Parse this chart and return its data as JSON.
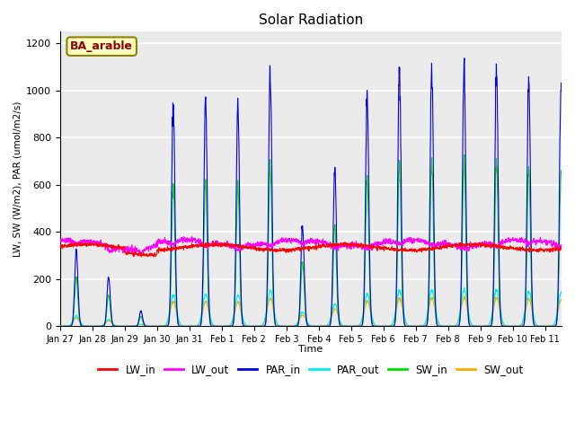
{
  "title": "Solar Radiation",
  "xlabel": "Time",
  "ylabel": "LW, SW (W/m2), PAR (umol/m2/s)",
  "site_label": "BA_arable",
  "ylim": [
    0,
    1250
  ],
  "series": {
    "LW_in": {
      "color": "#ff0000",
      "lw": 0.8,
      "zorder": 6
    },
    "LW_out": {
      "color": "#ff00ff",
      "lw": 0.8,
      "zorder": 6
    },
    "PAR_in": {
      "color": "#0000ee",
      "lw": 0.8,
      "zorder": 5
    },
    "PAR_out": {
      "color": "#00eeee",
      "lw": 0.8,
      "zorder": 4
    },
    "SW_in": {
      "color": "#00dd00",
      "lw": 0.8,
      "zorder": 4
    },
    "SW_out": {
      "color": "#ffaa00",
      "lw": 0.8,
      "zorder": 4
    }
  },
  "tick_labels": [
    "Jan 27",
    "Jan 28",
    "Jan 29",
    "Jan 30",
    "Jan 31",
    "Feb 1",
    "Feb 2",
    "Feb 3",
    "Feb 4",
    "Feb 5",
    "Feb 6",
    "Feb 7",
    "Feb 8",
    "Feb 9",
    "Feb 10",
    "Feb 11"
  ],
  "background_color": "#ebebeb",
  "grid_color": "#ffffff",
  "fig_bg": "#ffffff",
  "par_in_peaks": [
    320,
    210,
    65,
    950,
    960,
    940,
    1070,
    440,
    670,
    980,
    1100,
    1110,
    1110,
    1100,
    1050,
    1000
  ],
  "sw_in_ratio": 0.64,
  "sw_out_ratio": 0.11,
  "par_out_ratio": 0.14,
  "lw_in_base": 335,
  "lw_out_base": 355
}
